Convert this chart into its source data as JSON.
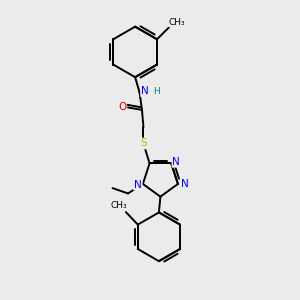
{
  "background_color": "#ebebeb",
  "atom_colors": {
    "C": "#000000",
    "N": "#0000ee",
    "O": "#dd0000",
    "S": "#bbbb00",
    "H": "#008888"
  },
  "bond_color": "#000000",
  "bond_width": 1.4,
  "font_size": 7.5
}
